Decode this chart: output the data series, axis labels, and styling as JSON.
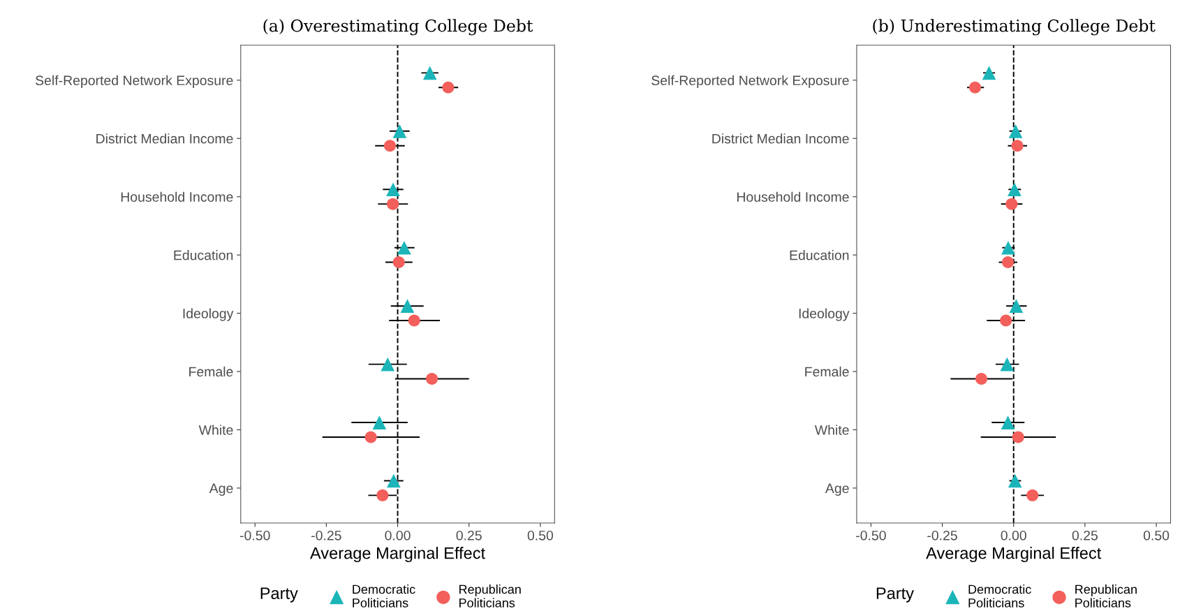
{
  "chart_data": [
    {
      "type": "scatter",
      "orientation": "horizontal",
      "title": "(a) Overestimating College Debt",
      "xlabel": "Average Marginal Effect",
      "legend_title": "Party",
      "legend": "bottom",
      "categories": [
        "Self-Reported Network Exposure",
        "District Median Income",
        "Household Income",
        "Education",
        "Ideology",
        "Female",
        "White",
        "Age"
      ],
      "xlim": [
        -0.55,
        0.55
      ],
      "xticks": [
        {
          "value": -0.5,
          "label": "-0.50"
        },
        {
          "value": -0.25,
          "label": "-0.25"
        },
        {
          "value": 0,
          "label": "0.00"
        },
        {
          "value": 0.25,
          "label": "0.25"
        },
        {
          "value": 0.5,
          "label": "0.50"
        }
      ],
      "ref_lines": [
        {
          "axis": "x",
          "value": 0,
          "label": null,
          "color": "#000000",
          "line_style": "dashed"
        }
      ],
      "series": [
        {
          "name": "Democratic\nPoliticians",
          "color": "#1bb5b9",
          "marker": "triangle",
          "values": [
            0.113,
            0.007,
            -0.016,
            0.023,
            0.034,
            -0.035,
            -0.064,
            -0.014
          ],
          "errors": [
            [
              0.083,
              0.143
            ],
            [
              -0.028,
              0.042
            ],
            [
              -0.052,
              0.02
            ],
            [
              -0.011,
              0.059
            ],
            [
              -0.024,
              0.091
            ],
            [
              -0.102,
              0.032
            ],
            [
              -0.162,
              0.035
            ],
            [
              -0.048,
              0.02
            ]
          ]
        },
        {
          "name": "Republican\nPoliticians",
          "color": "#f35f5b",
          "marker": "circle",
          "values": [
            0.177,
            -0.027,
            -0.017,
            0.004,
            0.058,
            0.12,
            -0.094,
            -0.053
          ],
          "errors": [
            [
              0.143,
              0.212
            ],
            [
              -0.079,
              0.025
            ],
            [
              -0.069,
              0.036
            ],
            [
              -0.043,
              0.052
            ],
            [
              -0.03,
              0.148
            ],
            [
              -0.009,
              0.25
            ],
            [
              -0.264,
              0.077
            ],
            [
              -0.103,
              -0.003
            ]
          ]
        }
      ]
    },
    {
      "type": "scatter",
      "orientation": "horizontal",
      "title": "(b) Underestimating College Debt",
      "xlabel": "Average Marginal Effect",
      "legend_title": "Party",
      "legend": "bottom",
      "categories": [
        "Self-Reported Network Exposure",
        "District Median Income",
        "Household Income",
        "Education",
        "Ideology",
        "Female",
        "White",
        "Age"
      ],
      "xlim": [
        -0.55,
        0.55
      ],
      "xticks": [
        {
          "value": -0.5,
          "label": "-0.50"
        },
        {
          "value": -0.25,
          "label": "-0.25"
        },
        {
          "value": 0,
          "label": "0.00"
        },
        {
          "value": 0.25,
          "label": "0.25"
        },
        {
          "value": 0.5,
          "label": "0.50"
        }
      ],
      "ref_lines": [
        {
          "axis": "x",
          "value": 0,
          "label": null,
          "color": "#000000",
          "line_style": "dashed"
        }
      ],
      "series": [
        {
          "name": "Democratic\nPoliticians",
          "color": "#1bb5b9",
          "marker": "triangle",
          "values": [
            -0.086,
            0.007,
            0.003,
            -0.019,
            0.009,
            -0.023,
            -0.02,
            0.005
          ],
          "errors": [
            [
              -0.107,
              -0.065
            ],
            [
              -0.015,
              0.028
            ],
            [
              -0.018,
              0.026
            ],
            [
              -0.04,
              0.004
            ],
            [
              -0.026,
              0.046
            ],
            [
              -0.063,
              0.019
            ],
            [
              -0.077,
              0.038
            ],
            [
              -0.015,
              0.026
            ]
          ]
        },
        {
          "name": "Republican\nPoliticians",
          "color": "#f35f5b",
          "marker": "circle",
          "values": [
            -0.135,
            0.013,
            -0.007,
            -0.02,
            -0.027,
            -0.113,
            0.016,
            0.066
          ],
          "errors": [
            [
              -0.163,
              -0.104
            ],
            [
              -0.02,
              0.047
            ],
            [
              -0.044,
              0.031
            ],
            [
              -0.052,
              0.013
            ],
            [
              -0.094,
              0.04
            ],
            [
              -0.221,
              -0.004
            ],
            [
              -0.115,
              0.148
            ],
            [
              0.026,
              0.106
            ]
          ]
        }
      ]
    }
  ]
}
